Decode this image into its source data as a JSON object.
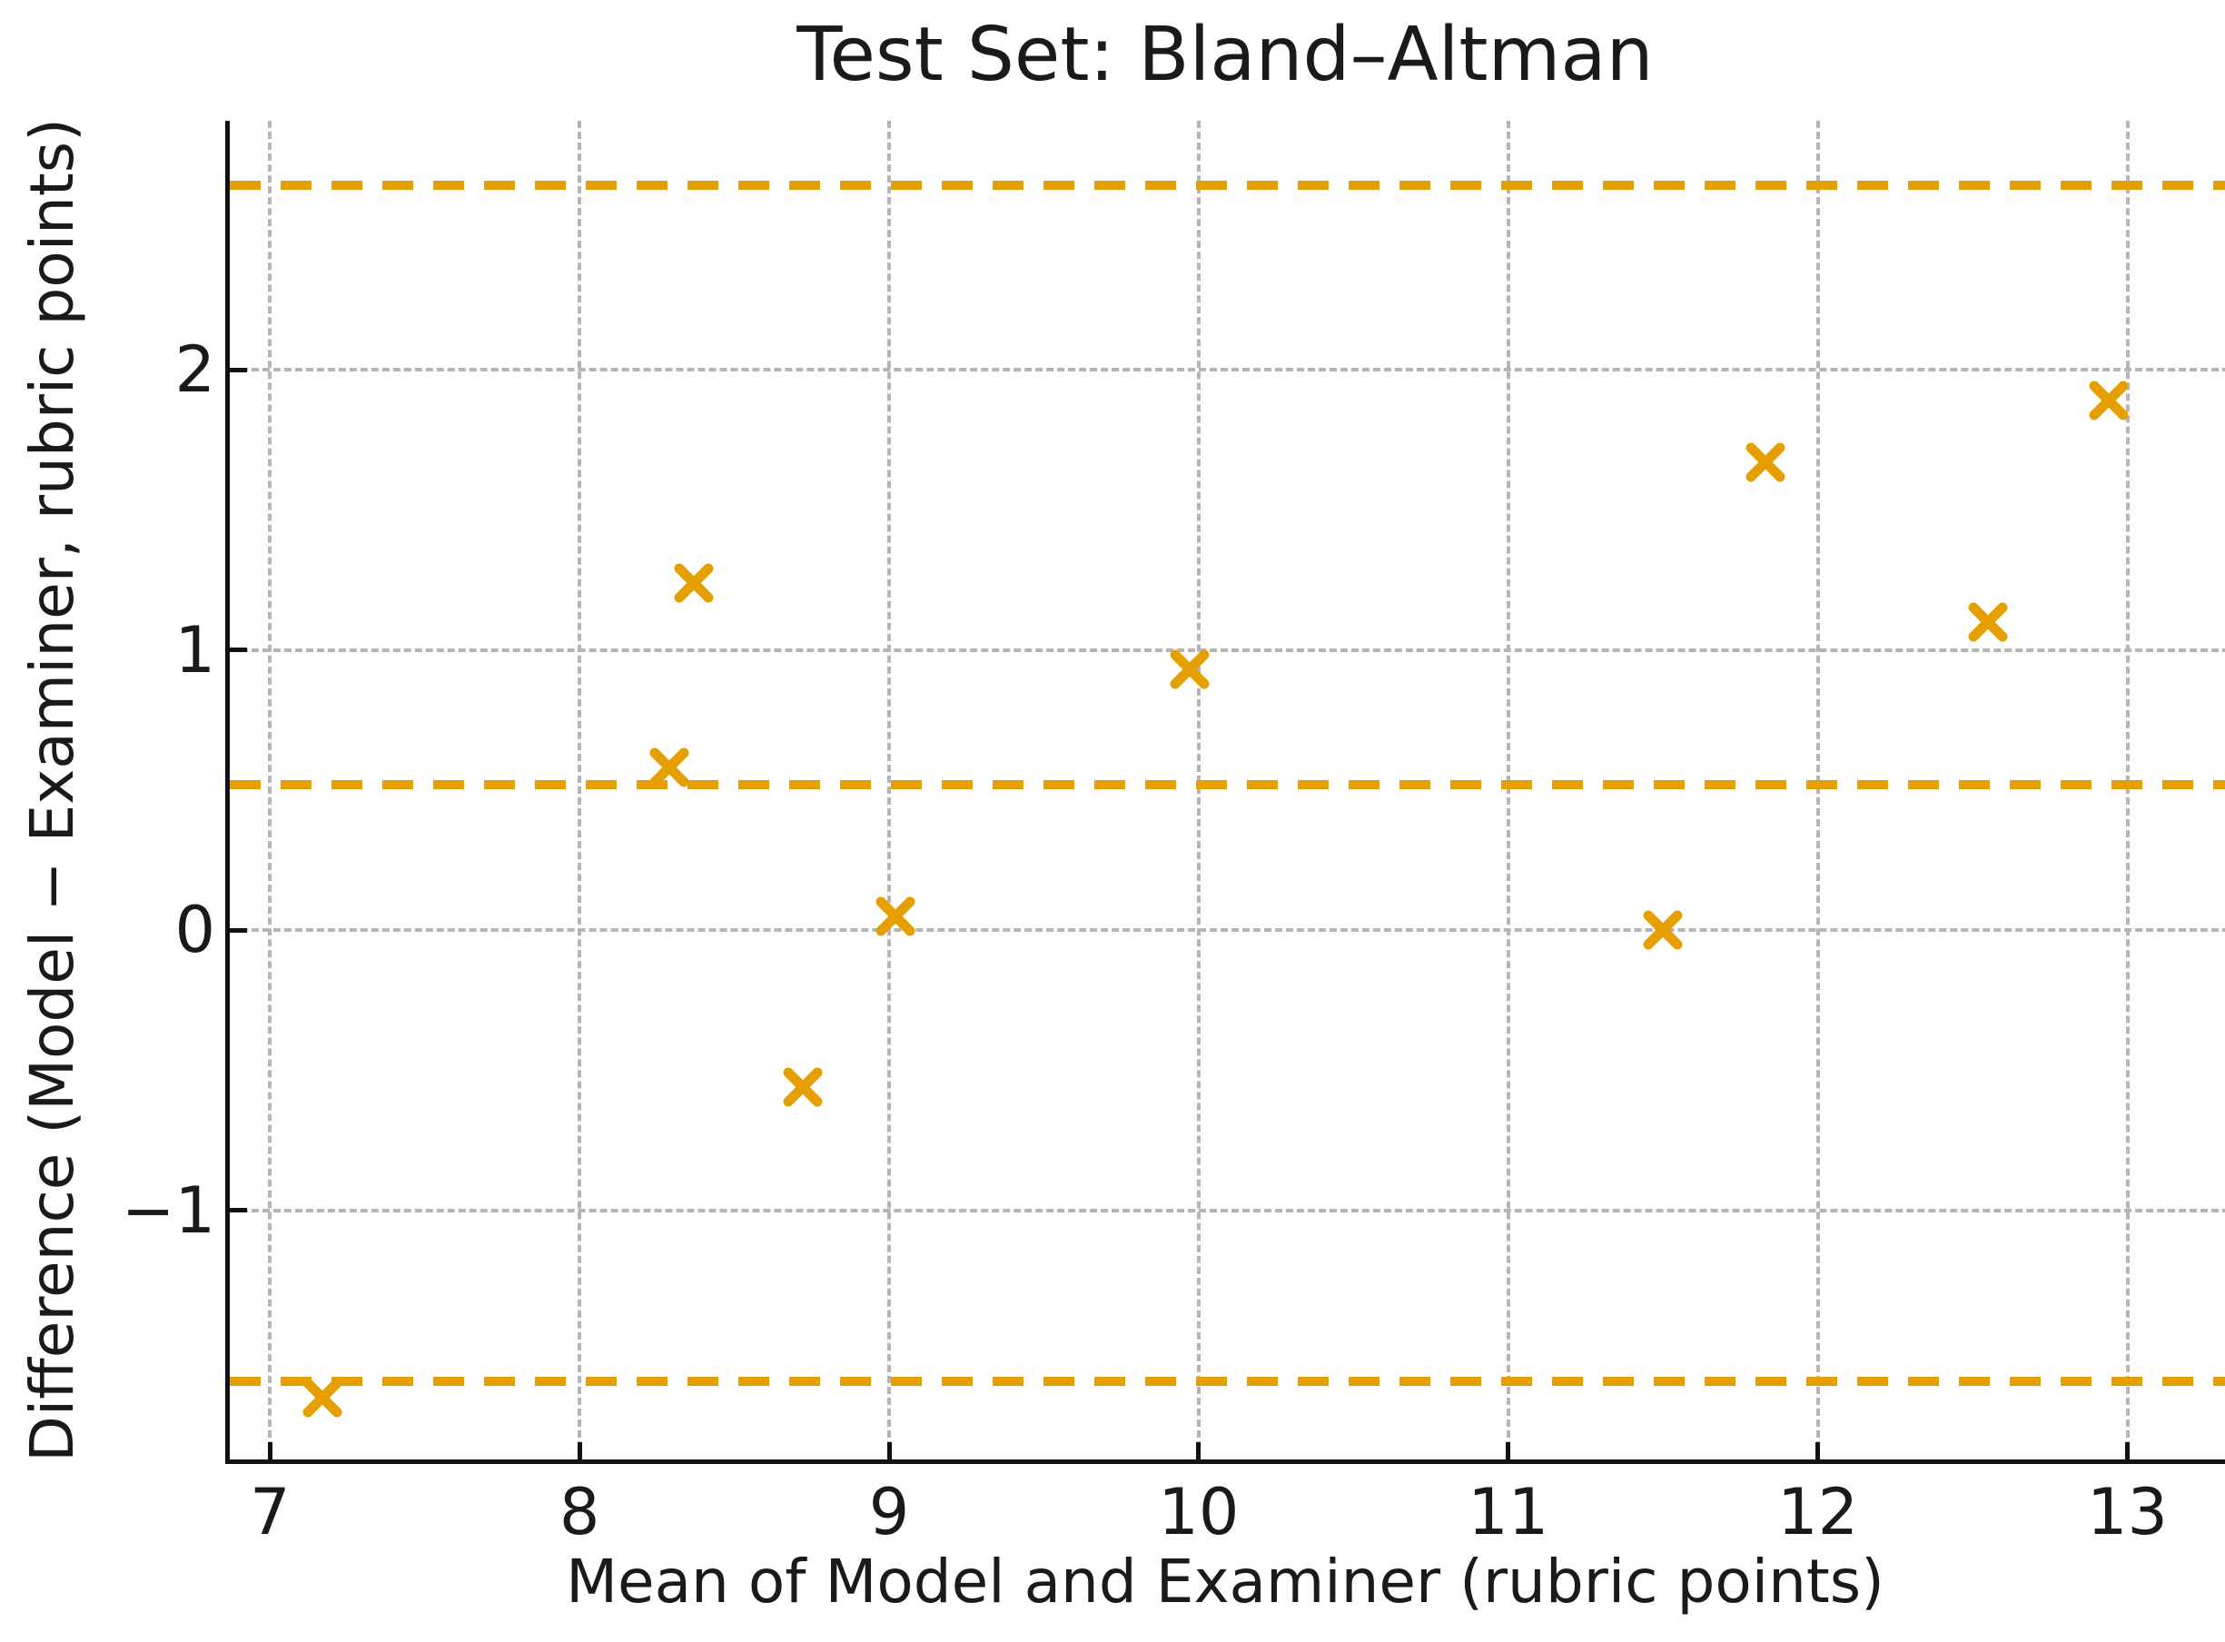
{
  "colors": {
    "accent": "#E69F00",
    "grid": "#b5b5b5",
    "spine": "#111111",
    "text": "#1a1a1a",
    "background": "#ffffff"
  },
  "chart_data": {
    "type": "scatter",
    "title": "Test Set: Bland–Altman",
    "xlabel": "Mean of Model and Examiner (rubric points)",
    "ylabel": "Difference (Model − Examiner, rubric points)",
    "marker": "x",
    "marker_color": "#E69F00",
    "points": [
      {
        "x": 7.17,
        "y": -1.67
      },
      {
        "x": 8.29,
        "y": 0.58
      },
      {
        "x": 8.37,
        "y": 1.24
      },
      {
        "x": 8.72,
        "y": -0.56
      },
      {
        "x": 9.02,
        "y": 0.05
      },
      {
        "x": 9.97,
        "y": 0.93
      },
      {
        "x": 11.5,
        "y": 0.0
      },
      {
        "x": 11.83,
        "y": 1.67
      },
      {
        "x": 12.55,
        "y": 1.1
      },
      {
        "x": 12.94,
        "y": 1.89
      }
    ],
    "reference_lines": [
      {
        "name": "upper-loa-line",
        "y": 2.66,
        "style": "dashed",
        "color": "#E69F00"
      },
      {
        "name": "mean-diff-line",
        "y": 0.52,
        "style": "dashed",
        "color": "#E69F00"
      },
      {
        "name": "lower-loa-line",
        "y": -1.61,
        "style": "dashed",
        "color": "#E69F00"
      }
    ],
    "xlim": [
      6.87,
      13.33
    ],
    "ylim": [
      -1.89,
      2.89
    ],
    "xticks": {
      "values": [
        7,
        8,
        9,
        10,
        11,
        12,
        13
      ],
      "labels": [
        "7",
        "8",
        "9",
        "10",
        "11",
        "12",
        "13"
      ]
    },
    "yticks": {
      "values": [
        -1,
        0,
        1,
        2
      ],
      "labels": [
        "−1",
        "0",
        "1",
        "2"
      ]
    },
    "grid": true,
    "legend": false
  }
}
